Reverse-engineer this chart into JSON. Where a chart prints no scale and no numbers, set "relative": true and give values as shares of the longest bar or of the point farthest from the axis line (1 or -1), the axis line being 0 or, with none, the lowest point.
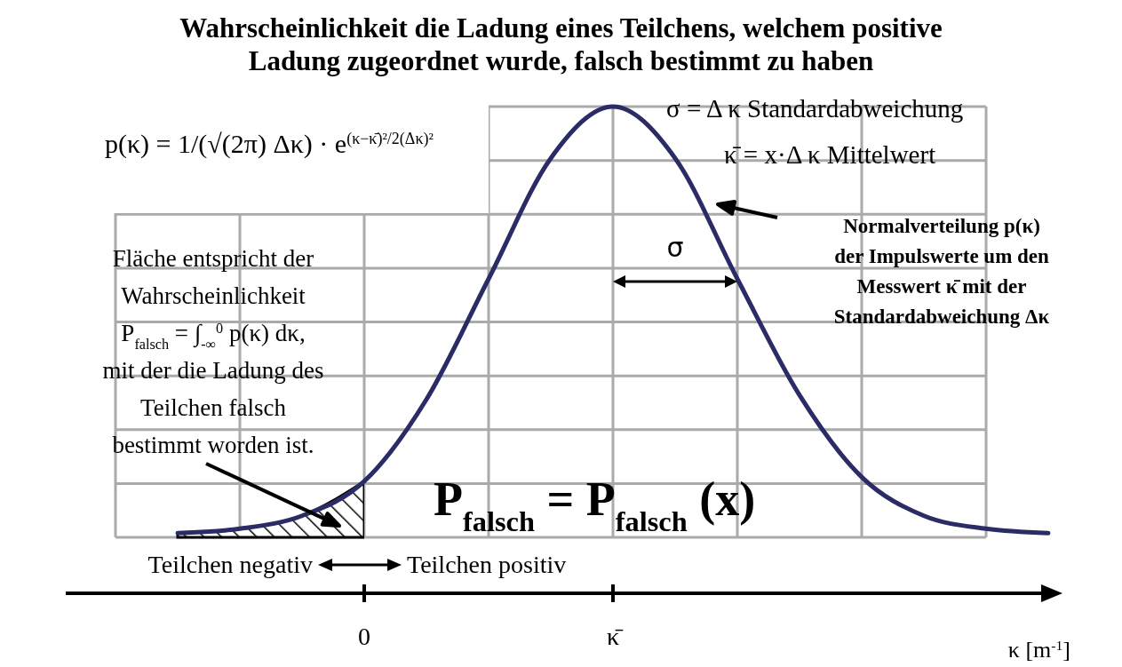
{
  "chart_data": {
    "type": "line",
    "relative": true,
    "title": "Wahrscheinlichkeit die Ladung eines Teilchens, welchem positive Ladung zugeordnet wurde, falsch bestimmt zu haben",
    "xlabel": "κ [m$^{-1}$]",
    "categories": [
      null,
      null,
      null,
      "0",
      null,
      null,
      null,
      "κ̄",
      null,
      null,
      null,
      null,
      null,
      null,
      null
    ],
    "series": [
      {
        "color": "#2b2b66",
        "values": [
          0.01,
          0.02,
          0.05,
          0.13,
          0.32,
          0.6,
          0.88,
          1,
          0.88,
          0.6,
          0.33,
          0.14,
          0.05,
          0.02,
          0.01
        ]
      }
    ],
    "grid": true,
    "annotations": [
      "p(κ) = 1/(√(2π) Δκ) · e$^{(κ−κ̄)²/2(Δκ)²}$",
      "σ = Δ κ   Standardabweichung",
      "κ̄ = x·Δ κ   Mittelwert",
      "Normalverteilung p(κ) der Impulswerte um den Messwert κ̄ mit der Standardabweichung Δκ",
      "σ",
      "Fläche entspricht der Wahrscheinlichkeit P$_{falsch}$ = ∫$_{-∞}$$^{0}$ p(κ) dκ, mit der die Ladung des Teilchen falsch bestimmt worden ist.",
      "P$_{falsch}$ = P$_{falsch}$ (x)",
      "Teilchen negativ",
      "Teilchen positiv"
    ]
  }
}
